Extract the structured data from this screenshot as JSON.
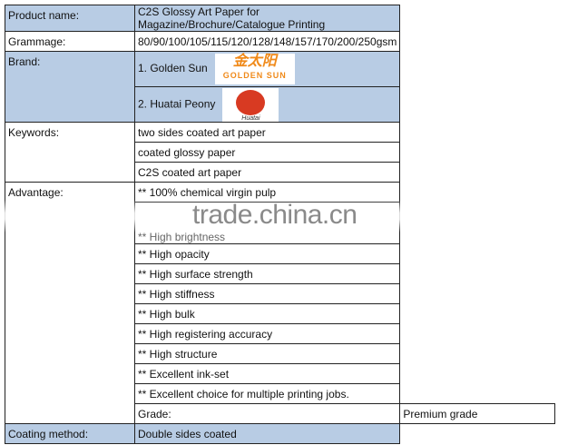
{
  "rows": {
    "product": {
      "label": "Product name:",
      "value": "C2S Glossy Art Paper for Magazine/Brochure/Catalogue Printing"
    },
    "grammage": {
      "label": "Grammage:",
      "value": "80/90/100/105/115/120/128/148/157/170/200/250gsm"
    },
    "brand": {
      "label": "Brand:",
      "items": [
        {
          "name": "1. Golden Sun",
          "logo_cn": "金太阳",
          "logo_en": "GOLDEN SUN"
        },
        {
          "name": "2. Huatai Peony",
          "logo_en": "Huatai"
        }
      ]
    },
    "keywords": {
      "label": "Keywords:",
      "items": [
        "two sides coated art paper",
        "coated glossy paper",
        "C2S coated art paper"
      ]
    },
    "advantage": {
      "label": "Advantage:",
      "items": [
        "** 100% chemical virgin pulp",
        "** High brightness",
        "** High opacity",
        "** High surface strength",
        "** High stiffness",
        "** High bulk",
        "** High registering accuracy",
        "** High structure",
        "** Excellent ink-set",
        "** Excellent choice for multiple printing jobs."
      ]
    },
    "grade": {
      "label": "Grade:",
      "value": "Premium grade"
    },
    "coating": {
      "label": "Coating method:",
      "value": "Double sides coated"
    }
  },
  "watermark": "trade.china.cn",
  "colors": {
    "header_blue": "#b8cce4",
    "logo_orange": "#f08a1a",
    "logo_red": "#d83a22"
  }
}
